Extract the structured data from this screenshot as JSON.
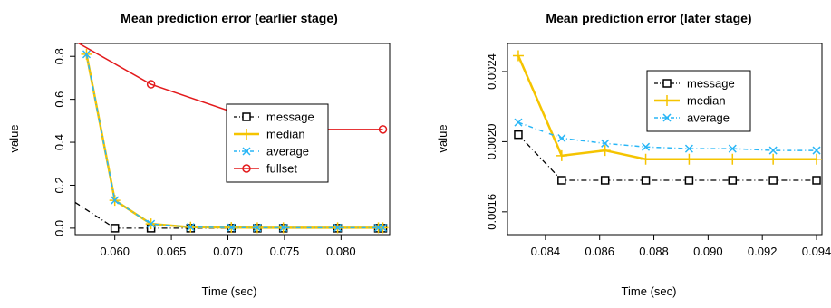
{
  "chart_data": [
    {
      "type": "line",
      "title": "Mean prediction error (earlier stage)",
      "xlabel": "Time (sec)",
      "ylabel": "value",
      "xlim": [
        0.0565,
        0.0843
      ],
      "ylim": [
        -0.03,
        0.86
      ],
      "xticks": [
        0.06,
        0.065,
        0.07,
        0.075,
        0.08
      ],
      "xtick_labels": [
        "0.060",
        "0.065",
        "0.070",
        "0.075",
        "0.080"
      ],
      "yticks": [
        0.0,
        0.2,
        0.4,
        0.6,
        0.8
      ],
      "ytick_labels": [
        "0.0",
        "0.2",
        "0.4",
        "0.6",
        "0.8"
      ],
      "grid": false,
      "legend_position": "right",
      "series": [
        {
          "name": "message",
          "color": "#000000",
          "dash": "6,3,1,3",
          "marker": "square",
          "width": 1.3,
          "x": [
            0.0565,
            0.06,
            0.0632,
            0.0667,
            0.0703,
            0.0726,
            0.0749,
            0.0797,
            0.0833,
            0.0837
          ],
          "y": [
            0.12,
            0.0,
            0.0,
            0.0,
            0.0,
            0.0,
            0.0,
            0.0,
            0.0,
            0.0
          ],
          "marker_skip_first": true
        },
        {
          "name": "median",
          "color": "#f5c400",
          "dash": "",
          "marker": "plus",
          "width": 2.5,
          "x": [
            0.0575,
            0.06,
            0.0632,
            0.0667,
            0.0703,
            0.0726,
            0.0749,
            0.0797,
            0.0833,
            0.0837
          ],
          "y": [
            0.81,
            0.13,
            0.02,
            0.005,
            0.003,
            0.002,
            0.002,
            0.002,
            0.002,
            0.002
          ]
        },
        {
          "name": "average",
          "color": "#29b6f6",
          "dash": "5,3,1,3",
          "marker": "x",
          "width": 1.5,
          "x": [
            0.0575,
            0.06,
            0.0632,
            0.0667,
            0.0703,
            0.0726,
            0.0749,
            0.0797,
            0.0833,
            0.0837
          ],
          "y": [
            0.81,
            0.13,
            0.02,
            0.005,
            0.003,
            0.002,
            0.002,
            0.002,
            0.002,
            0.002
          ]
        },
        {
          "name": "fullset",
          "color": "#e31a1c",
          "dash": "",
          "marker": "circle",
          "width": 1.5,
          "x": [
            0.0565,
            0.0632,
            0.0749,
            0.0837
          ],
          "y": [
            0.87,
            0.67,
            0.46,
            0.46
          ],
          "marker_skip_first": true
        }
      ]
    },
    {
      "type": "line",
      "title": "Mean prediction error (later stage)",
      "xlabel": "Time (sec)",
      "ylabel": "value",
      "xlim": [
        0.0826,
        0.0942
      ],
      "ylim": [
        0.00147,
        0.00256
      ],
      "xticks": [
        0.084,
        0.086,
        0.088,
        0.09,
        0.092,
        0.094
      ],
      "xtick_labels": [
        "0.084",
        "0.086",
        "0.088",
        "0.090",
        "0.092",
        "0.094"
      ],
      "yticks": [
        0.0016,
        0.002,
        0.0024
      ],
      "ytick_labels": [
        "0.0016",
        "0.0020",
        "0.0024"
      ],
      "grid": false,
      "legend_position": "top-right",
      "series": [
        {
          "name": "message",
          "color": "#000000",
          "dash": "6,3,1,3",
          "marker": "square",
          "width": 1.3,
          "x": [
            0.083,
            0.0846,
            0.0862,
            0.0877,
            0.0893,
            0.0909,
            0.0924,
            0.094
          ],
          "y": [
            0.00204,
            0.00178,
            0.00178,
            0.00178,
            0.00178,
            0.00178,
            0.00178,
            0.00178
          ]
        },
        {
          "name": "median",
          "color": "#f5c400",
          "dash": "",
          "marker": "plus",
          "width": 2.5,
          "x": [
            0.083,
            0.0846,
            0.0862,
            0.0877,
            0.0893,
            0.0909,
            0.0924,
            0.094
          ],
          "y": [
            0.00249,
            0.00192,
            0.00195,
            0.0019,
            0.0019,
            0.0019,
            0.0019,
            0.0019
          ]
        },
        {
          "name": "average",
          "color": "#29b6f6",
          "dash": "5,3,1,3",
          "marker": "x",
          "width": 1.5,
          "x": [
            0.083,
            0.0846,
            0.0862,
            0.0877,
            0.0893,
            0.0909,
            0.0924,
            0.094
          ],
          "y": [
            0.00211,
            0.00202,
            0.00199,
            0.00197,
            0.00196,
            0.00196,
            0.00195,
            0.00195
          ]
        }
      ]
    }
  ]
}
